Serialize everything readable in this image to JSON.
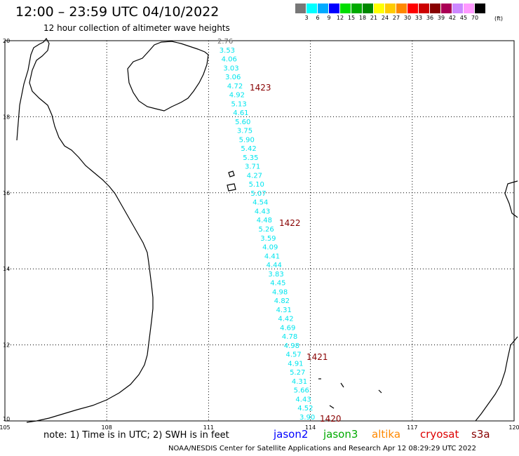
{
  "header": {
    "title": "12:00 – 23:59 UTC 04/10/2022",
    "subtitle": "12 hour collection of altimeter wave heights"
  },
  "legend": {
    "colors": [
      "#777777",
      "#00ffff",
      "#00aaff",
      "#0000ff",
      "#00dd00",
      "#00aa00",
      "#008800",
      "#ffff00",
      "#ffcc00",
      "#ff8800",
      "#ff0000",
      "#cc0000",
      "#880000",
      "#aa0055",
      "#cc88ff",
      "#ff99ff",
      "#000000"
    ],
    "labels": [
      "3",
      "6",
      "9",
      "12",
      "15",
      "18",
      "21",
      "24",
      "27",
      "30",
      "33",
      "36",
      "39",
      "42",
      "45",
      "70"
    ],
    "unit": "(ft)"
  },
  "map": {
    "lon_ticks": [
      "105",
      "108",
      "111",
      "114",
      "117",
      "120"
    ],
    "lat_ticks": [
      "10",
      "12",
      "14",
      "16",
      "18",
      "20"
    ],
    "track_color": "#00e5ee",
    "first_value_color": "#666666",
    "wave_heights": [
      "2.76",
      "3.53",
      "4.06",
      "3.03",
      "3.06",
      "4.72",
      "4.92",
      "5.13",
      "4.61",
      "5.60",
      "3.75",
      "5.90",
      "5.42",
      "5.35",
      "3.71",
      "4.27",
      "5.10",
      "5.07",
      "4.54",
      "4.43",
      "4.48",
      "5.26",
      "3.59",
      "4.09",
      "4.41",
      "4.44",
      "3.83",
      "4.45",
      "4.98",
      "4.82",
      "4.31",
      "4.42",
      "4.69",
      "4.78",
      "4.98",
      "4.57",
      "4.91",
      "5.27",
      "4.31",
      "5.66",
      "4.43",
      "4.52",
      "3.90"
    ],
    "time_labels": [
      "1423",
      "1422",
      "1421",
      "1420"
    ],
    "time_color": "#880000"
  },
  "footer": {
    "note": "note:  1) Time is in UTC;  2) SWH is in feet",
    "satellites": [
      {
        "name": "jason2",
        "color": "#0000ff"
      },
      {
        "name": "jason3",
        "color": "#00aa00"
      },
      {
        "name": "altika",
        "color": "#ff8800"
      },
      {
        "name": "cryosat",
        "color": "#dd0000"
      },
      {
        "name": "s3a",
        "color": "#880000"
      }
    ],
    "credit": "NOAA/NESDIS Center for Satellite Applications and Research    Apr 12 08:29:29 UTC 2022"
  }
}
